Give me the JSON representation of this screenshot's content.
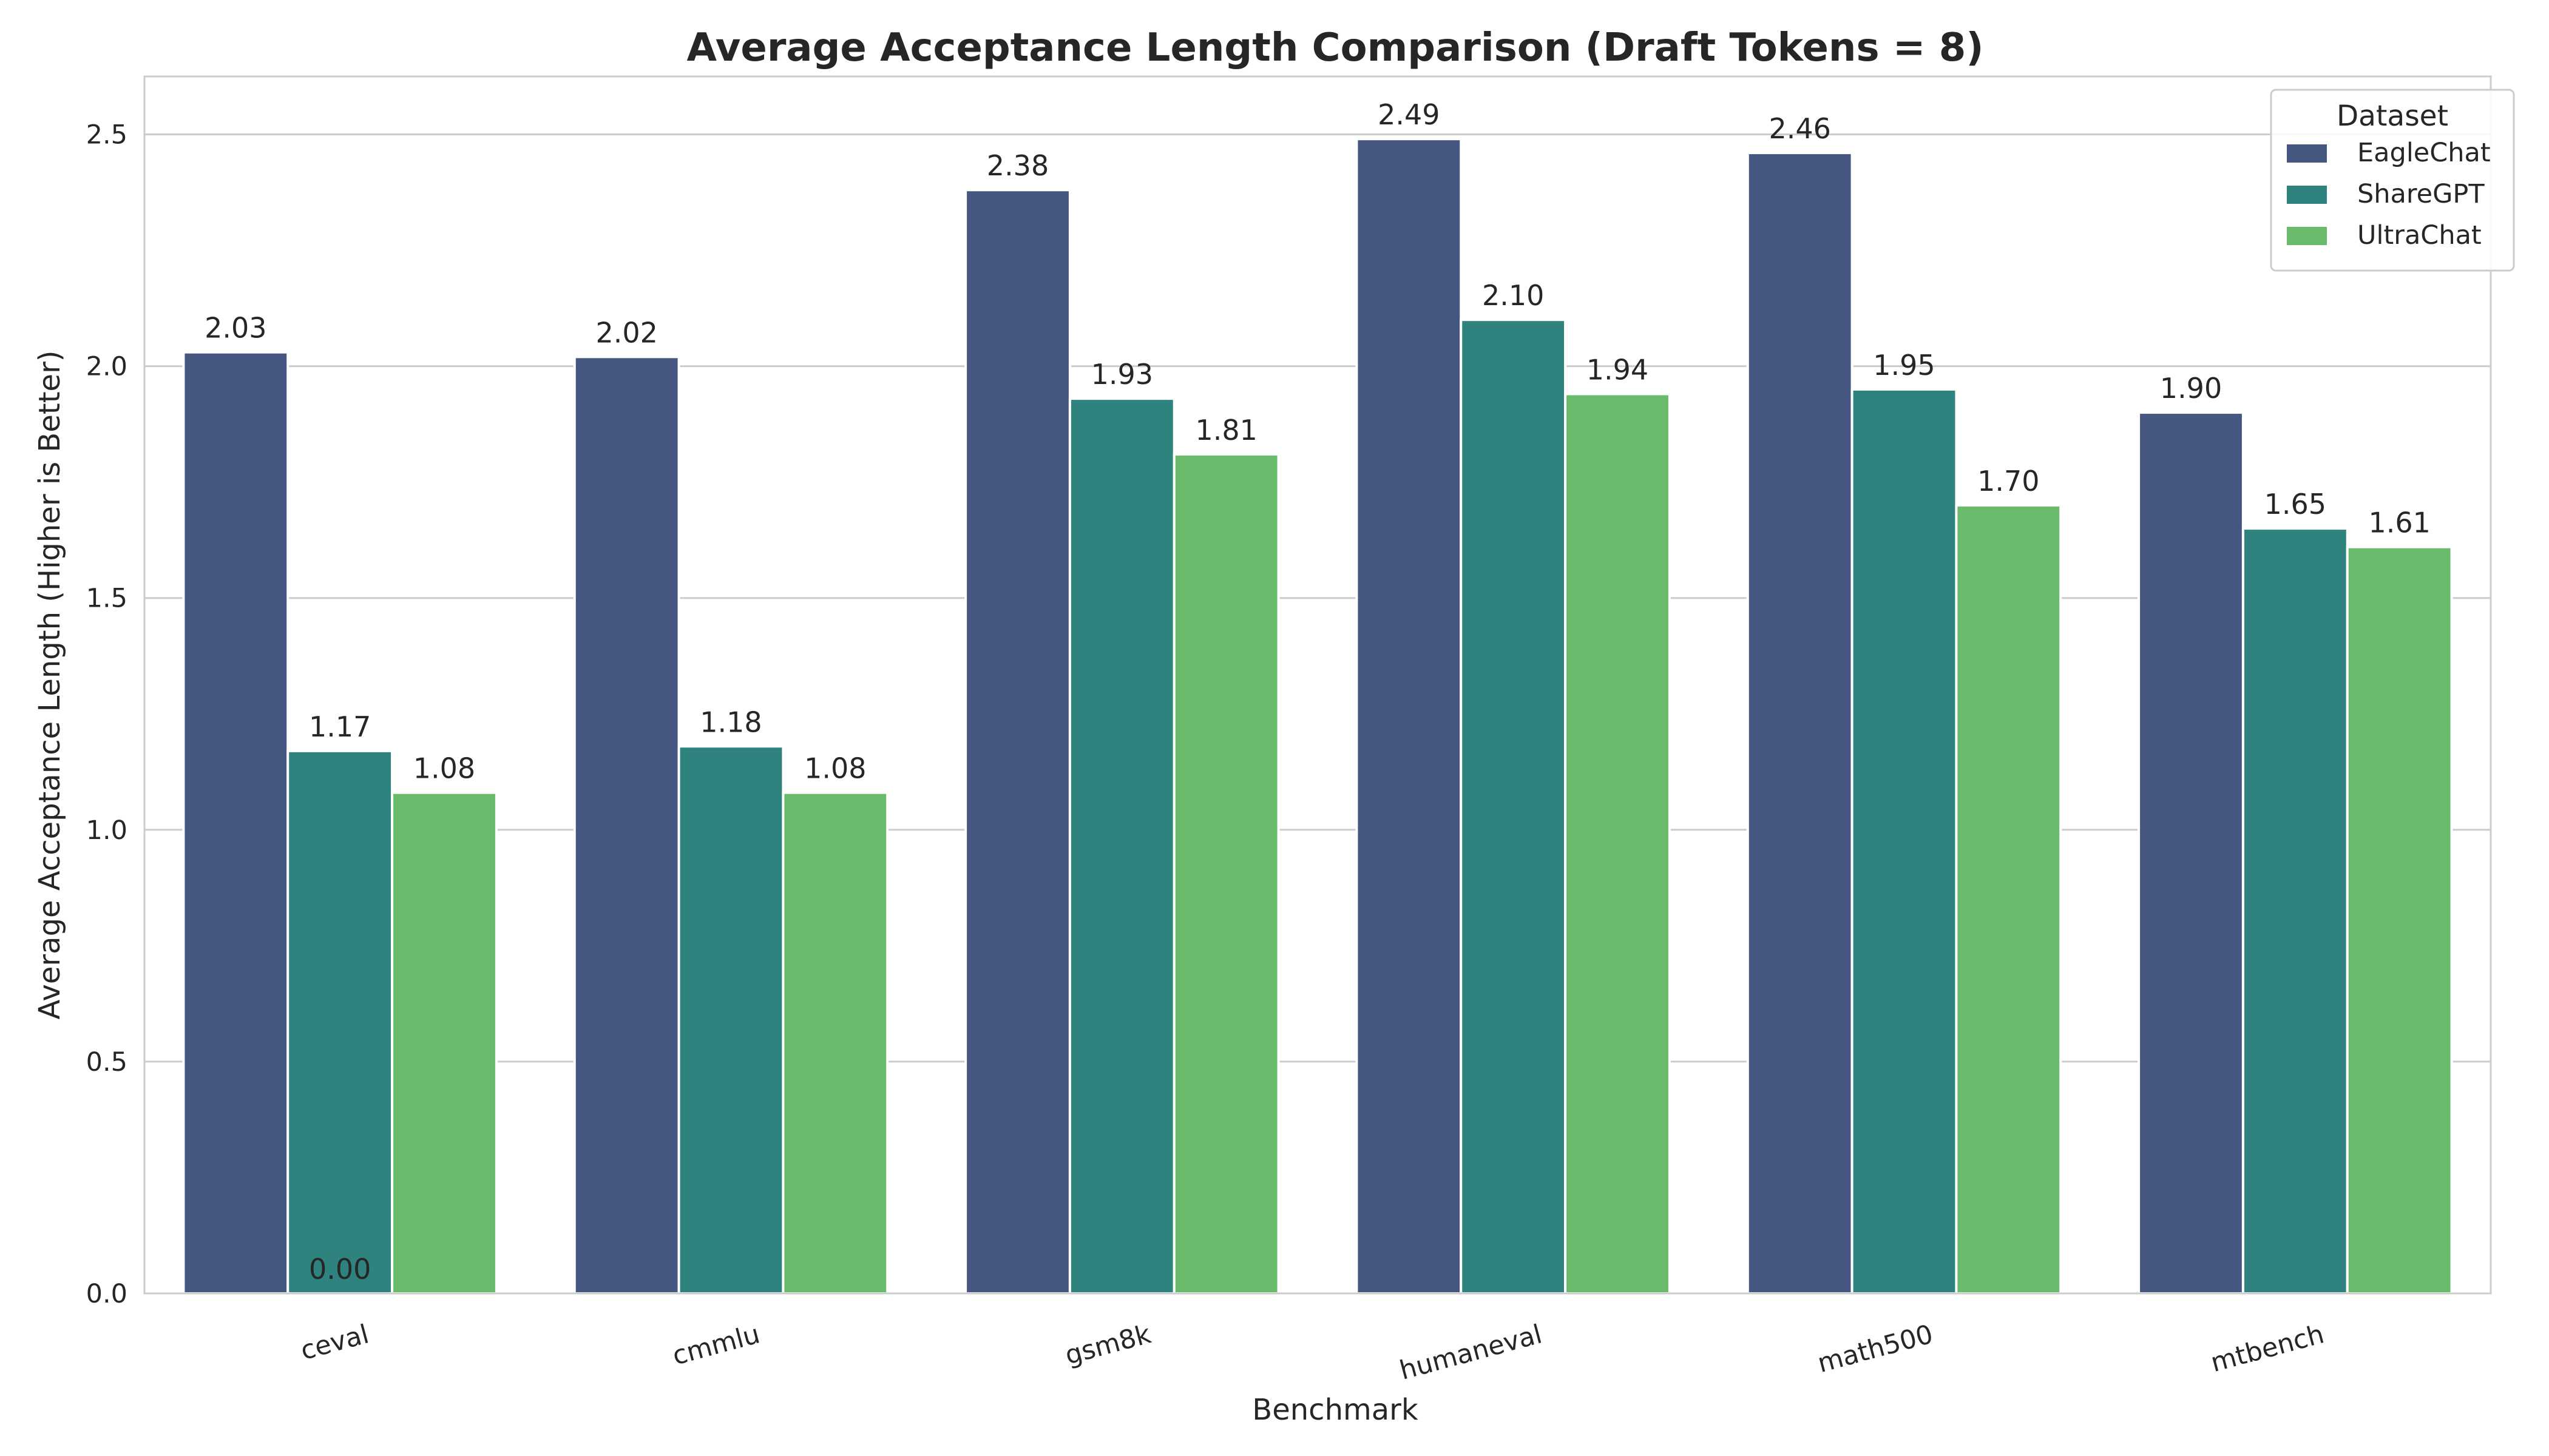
{
  "chart_data": {
    "type": "bar",
    "title": "Average Acceptance Length Comparison (Draft Tokens = 8)",
    "xlabel": "Benchmark",
    "ylabel": "Average Acceptance Length (Higher is Better)",
    "ylim": [
      0,
      2.625
    ],
    "yticks": [
      "0.0",
      "0.5",
      "1.0",
      "1.5",
      "2.0",
      "2.5"
    ],
    "grid": true,
    "categories": [
      "ceval",
      "cmmlu",
      "gsm8k",
      "humaneval",
      "math500",
      "mtbench"
    ],
    "series": [
      {
        "name": "EagleChat",
        "color": "#455681",
        "values": [
          2.03,
          2.02,
          2.38,
          2.49,
          2.46,
          1.9
        ],
        "labels": [
          "2.03",
          "2.02",
          "2.38",
          "2.49",
          "2.46",
          "1.90"
        ]
      },
      {
        "name": "ShareGPT",
        "color": "#2e837e",
        "values": [
          1.17,
          1.18,
          1.93,
          2.1,
          1.95,
          1.65
        ],
        "labels": [
          "1.17",
          "1.18",
          "1.93",
          "2.10",
          "1.95",
          "1.65"
        ]
      },
      {
        "name": "UltraChat",
        "color": "#6aba6b",
        "values": [
          1.08,
          1.08,
          1.81,
          1.94,
          1.7,
          1.61
        ],
        "labels": [
          "1.08",
          "1.08",
          "1.81",
          "1.94",
          "1.70",
          "1.61"
        ]
      }
    ],
    "annotations": [
      {
        "text": "0.00",
        "category": "ceval",
        "value": 0.0
      }
    ],
    "legend": {
      "title": "Dataset",
      "placement": "top-right"
    }
  }
}
